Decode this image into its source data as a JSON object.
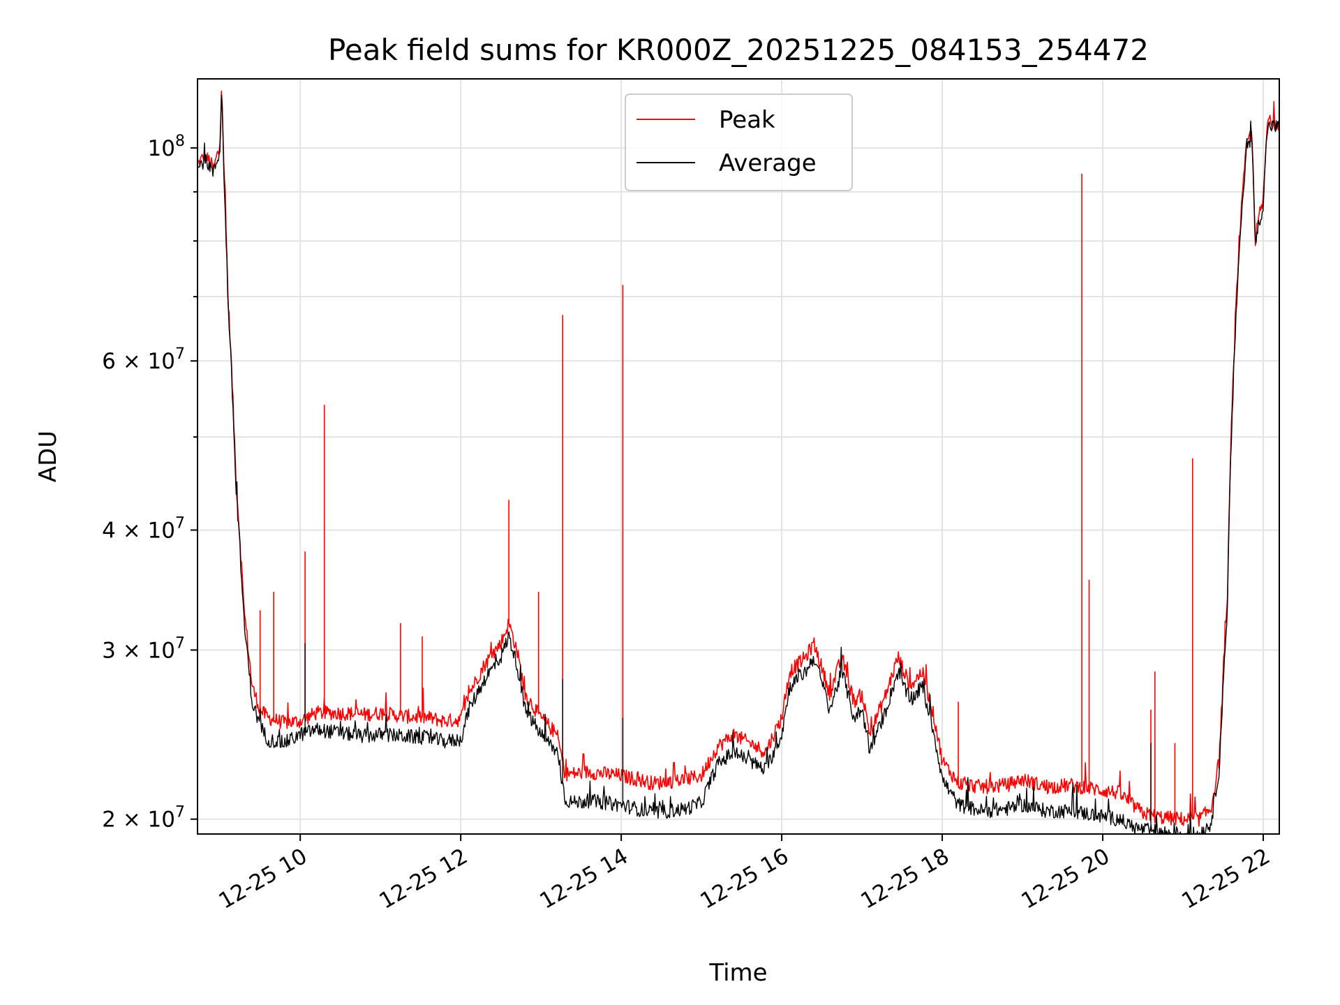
{
  "chart_data": {
    "type": "line",
    "title": "Peak field sums for KR000Z_20251225_084153_254472",
    "xlabel": "Time",
    "ylabel": "ADU",
    "yscale": "log",
    "grid": true,
    "legend_position": "top-center",
    "xlim": [
      8.72,
      22.2
    ],
    "ylim": [
      19300000,
      118000000
    ],
    "x_ticks": [
      {
        "value": 10,
        "label": "12-25 10"
      },
      {
        "value": 12,
        "label": "12-25 12"
      },
      {
        "value": 14,
        "label": "12-25 14"
      },
      {
        "value": 16,
        "label": "12-25 16"
      },
      {
        "value": 18,
        "label": "12-25 18"
      },
      {
        "value": 20,
        "label": "12-25 20"
      },
      {
        "value": 22,
        "label": "12-25 22"
      }
    ],
    "y_major_ticks": [
      {
        "value": 100000000,
        "base": "10",
        "exp": "8",
        "mant": ""
      },
      {
        "value": 60000000,
        "base": "10",
        "exp": "7",
        "mant": "6"
      },
      {
        "value": 40000000,
        "base": "10",
        "exp": "7",
        "mant": "4"
      },
      {
        "value": 30000000,
        "base": "10",
        "exp": "7",
        "mant": "3"
      },
      {
        "value": 20000000,
        "base": "10",
        "exp": "7",
        "mant": "2"
      }
    ],
    "y_minor_ticks": [
      50000000,
      70000000,
      80000000,
      90000000
    ],
    "series": [
      {
        "name": "Peak",
        "color": "#ff0000",
        "x": [
          8.72,
          8.8,
          8.87,
          8.92,
          8.96,
          9.0,
          9.02,
          9.05,
          9.1,
          9.2,
          9.3,
          9.4,
          9.5,
          9.6,
          9.8,
          10.0,
          10.2,
          10.5,
          10.8,
          11.0,
          11.3,
          11.6,
          11.8,
          12.0,
          12.1,
          12.3,
          12.5,
          12.6,
          12.7,
          12.8,
          13.0,
          13.2,
          13.3,
          13.4,
          13.6,
          13.8,
          14.0,
          14.2,
          14.4,
          14.6,
          14.8,
          15.0,
          15.2,
          15.4,
          15.6,
          15.8,
          16.0,
          16.1,
          16.3,
          16.4,
          16.6,
          16.75,
          16.9,
          17.0,
          17.1,
          17.3,
          17.45,
          17.6,
          17.75,
          17.9,
          18.0,
          18.2,
          18.5,
          18.8,
          19.0,
          19.3,
          19.6,
          19.9,
          20.2,
          20.4,
          20.5,
          20.7,
          21.0,
          21.2,
          21.35,
          21.45,
          21.55,
          21.6,
          21.7,
          21.8,
          21.86,
          21.9,
          21.95,
          22.0,
          22.05,
          22.1,
          22.2
        ],
        "y": [
          96000000,
          98000000,
          97000000,
          95000000,
          98000000,
          100000000,
          118000000,
          95000000,
          70000000,
          45000000,
          33000000,
          27500000,
          26000000,
          25500000,
          25200000,
          25300000,
          25800000,
          25800000,
          25700000,
          25800000,
          25600000,
          25500000,
          25300000,
          25400000,
          27000000,
          29000000,
          30500000,
          32000000,
          30000000,
          27000000,
          25500000,
          24500000,
          22300000,
          22300000,
          22400000,
          22300000,
          22200000,
          22000000,
          21800000,
          21900000,
          22000000,
          22200000,
          23800000,
          24500000,
          24000000,
          23500000,
          25500000,
          28500000,
          29500000,
          30500000,
          27000000,
          29500000,
          26500000,
          27000000,
          24500000,
          27000000,
          29500000,
          27500000,
          28500000,
          25500000,
          23000000,
          21800000,
          21600000,
          21700000,
          22000000,
          21600000,
          21700000,
          21500000,
          21300000,
          20600000,
          20300000,
          20100000,
          20000000,
          20000000,
          20500000,
          23000000,
          33000000,
          50000000,
          80000000,
          102000000,
          103000000,
          80000000,
          85000000,
          88000000,
          106000000,
          106500000,
          106000000
        ]
      },
      {
        "name": "Average",
        "color": "#000000",
        "x": [
          8.72,
          8.8,
          8.87,
          8.92,
          8.96,
          9.0,
          9.02,
          9.05,
          9.1,
          9.2,
          9.3,
          9.4,
          9.5,
          9.6,
          9.8,
          10.0,
          10.2,
          10.5,
          10.8,
          11.0,
          11.3,
          11.6,
          11.8,
          12.0,
          12.1,
          12.3,
          12.5,
          12.6,
          12.7,
          12.8,
          13.0,
          13.2,
          13.3,
          13.4,
          13.6,
          13.8,
          14.0,
          14.2,
          14.4,
          14.6,
          14.8,
          15.0,
          15.2,
          15.4,
          15.6,
          15.8,
          16.0,
          16.1,
          16.3,
          16.4,
          16.6,
          16.75,
          16.9,
          17.0,
          17.1,
          17.3,
          17.45,
          17.6,
          17.75,
          17.9,
          18.0,
          18.2,
          18.5,
          18.8,
          19.0,
          19.3,
          19.6,
          19.9,
          20.2,
          20.4,
          20.5,
          20.7,
          21.0,
          21.2,
          21.35,
          21.45,
          21.55,
          21.6,
          21.7,
          21.8,
          21.86,
          21.9,
          21.95,
          22.0,
          22.05,
          22.1,
          22.2
        ],
        "y": [
          95000000,
          97000000,
          96000000,
          94000000,
          97000000,
          99000000,
          116000000,
          93000000,
          69000000,
          44000000,
          32000000,
          26500000,
          25000000,
          24200000,
          24000000,
          24500000,
          24800000,
          24600000,
          24400000,
          24500000,
          24400000,
          24300000,
          24100000,
          24200000,
          26000000,
          28000000,
          29500000,
          31000000,
          29000000,
          26000000,
          24500000,
          23500000,
          21000000,
          20800000,
          20900000,
          20800000,
          20700000,
          20500000,
          20300000,
          20400000,
          20500000,
          20800000,
          22800000,
          23500000,
          23000000,
          22500000,
          24500000,
          27500000,
          28500000,
          29500000,
          26000000,
          28500000,
          25500000,
          26000000,
          23500000,
          26000000,
          28500000,
          26500000,
          27500000,
          24500000,
          22000000,
          20700000,
          20400000,
          20500000,
          20700000,
          20400000,
          20400000,
          20200000,
          20000000,
          19600000,
          19500000,
          19400000,
          19300000,
          19300000,
          19800000,
          22500000,
          32000000,
          49000000,
          78000000,
          101000000,
          102000000,
          79000000,
          84000000,
          87000000,
          105000000,
          105500000,
          105000000
        ]
      }
    ],
    "spikes": [
      {
        "series": "Peak",
        "x": 9.5,
        "y": 33000000
      },
      {
        "series": "Peak",
        "x": 9.67,
        "y": 34500000
      },
      {
        "series": "Peak",
        "x": 10.06,
        "y": 38000000
      },
      {
        "series": "Peak",
        "x": 10.3,
        "y": 54000000
      },
      {
        "series": "Peak",
        "x": 11.25,
        "y": 32000000
      },
      {
        "series": "Peak",
        "x": 11.52,
        "y": 31000000
      },
      {
        "series": "Peak",
        "x": 12.6,
        "y": 43000000
      },
      {
        "series": "Peak",
        "x": 12.97,
        "y": 34500000
      },
      {
        "series": "Peak",
        "x": 13.27,
        "y": 67000000
      },
      {
        "series": "Peak",
        "x": 14.02,
        "y": 72000000
      },
      {
        "series": "Peak",
        "x": 18.2,
        "y": 26500000
      },
      {
        "series": "Peak",
        "x": 19.74,
        "y": 94000000
      },
      {
        "series": "Peak",
        "x": 19.83,
        "y": 35500000
      },
      {
        "series": "Peak",
        "x": 20.6,
        "y": 26000000
      },
      {
        "series": "Peak",
        "x": 20.65,
        "y": 28500000
      },
      {
        "series": "Peak",
        "x": 20.9,
        "y": 24000000
      },
      {
        "series": "Peak",
        "x": 21.12,
        "y": 47500000
      },
      {
        "series": "Average",
        "x": 13.27,
        "y": 28000000
      },
      {
        "series": "Average",
        "x": 14.02,
        "y": 25500000
      },
      {
        "series": "Average",
        "x": 10.06,
        "y": 30500000
      },
      {
        "series": "Average",
        "x": 20.6,
        "y": 24000000
      }
    ]
  }
}
